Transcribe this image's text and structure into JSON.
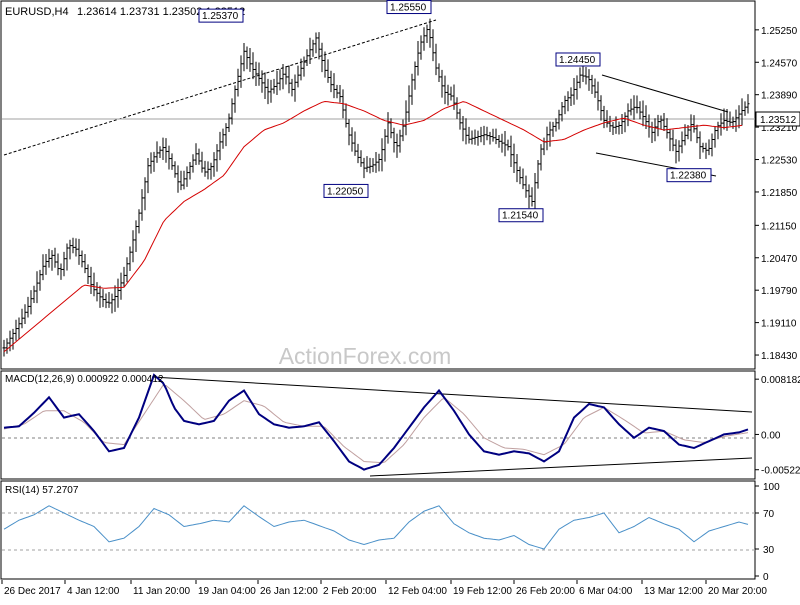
{
  "header": {
    "symbol": "EURUSD,H4",
    "ohlc": "1.23614 1.23731 1.23502 1.23512"
  },
  "watermark": "ActionForex.com",
  "colors": {
    "price": "#000000",
    "ma": "#d40000",
    "macd": "#000080",
    "signal": "#c0a0a0",
    "rsi": "#4a90c8",
    "trend": "#000000",
    "label_border": "#000080",
    "background": "#ffffff"
  },
  "chart_data": [
    {
      "type": "line",
      "name": "price",
      "title": "EURUSD,H4",
      "ylim": [
        1.182,
        1.2575
      ],
      "y_ticks": [
        "1.25250",
        "1.24570",
        "1.23890",
        "1.23210",
        "1.22530",
        "1.21850",
        "1.21150",
        "1.20470",
        "1.19790",
        "1.19110",
        "1.18430"
      ],
      "current_price": "1.23512",
      "x_ticks": [
        "26 Dec 2017",
        "4 Jan 12:00",
        "11 Jan 20:00",
        "19 Jan 04:00",
        "26 Jan 12:00",
        "2 Feb 20:00",
        "12 Feb 04:00",
        "19 Feb 12:00",
        "26 Feb 20:00",
        "6 Mar 04:00",
        "13 Mar 12:00",
        "20 Mar 20:00"
      ],
      "series": [
        {
          "x": [
            0,
            8,
            16,
            24,
            32,
            40,
            48,
            56,
            64,
            72,
            80,
            88,
            96,
            104,
            112,
            120,
            128,
            136,
            144,
            152,
            160,
            168,
            176,
            184,
            192,
            200,
            208,
            216,
            224,
            232,
            240,
            248,
            256,
            264,
            272,
            280,
            288,
            296,
            304,
            312,
            320,
            328,
            336,
            344,
            352,
            360,
            368,
            376,
            384,
            392,
            400,
            408,
            416,
            424,
            432,
            440,
            448,
            456,
            464,
            472,
            480,
            488,
            496,
            504,
            512,
            520,
            528,
            536,
            544,
            552,
            560,
            568,
            576,
            584,
            592,
            600,
            608,
            616,
            624,
            632,
            640,
            648,
            656,
            664,
            672,
            680,
            688,
            696,
            704,
            712,
            720,
            728,
            736,
            744
          ],
          "values": [
            1.1858,
            1.1885,
            1.1912,
            1.1945,
            1.1988,
            1.2035,
            1.2052,
            1.2015,
            1.2075,
            1.2065,
            1.203,
            1.1985,
            1.1965,
            1.195,
            1.1968,
            1.201,
            1.2075,
            1.215,
            1.224,
            1.2265,
            1.228,
            1.224,
            1.2195,
            1.223,
            1.2265,
            1.2225,
            1.224,
            1.229,
            1.233,
            1.241,
            1.248,
            1.2445,
            1.242,
            1.2395,
            1.241,
            1.2435,
            1.24,
            1.244,
            1.2475,
            1.2508,
            1.2445,
            1.2405,
            1.2385,
            1.231,
            1.2265,
            1.2235,
            1.224,
            1.2255,
            1.233,
            1.2275,
            1.233,
            1.242,
            1.2495,
            1.253,
            1.2445,
            1.2395,
            1.2385,
            1.233,
            1.2295,
            1.23,
            1.2305,
            1.23,
            1.229,
            1.228,
            1.2235,
            1.2195,
            1.2165,
            1.227,
            1.231,
            1.233,
            1.2375,
            1.239,
            1.243,
            1.2425,
            1.239,
            1.2335,
            1.232,
            1.2325,
            1.2355,
            1.2365,
            1.234,
            1.231,
            1.234,
            1.2305,
            1.227,
            1.23,
            1.233,
            1.228,
            1.227,
            1.232,
            1.2335,
            1.233,
            1.2351,
            1.237
          ]
        },
        {
          "name": "MA",
          "x": [
            0,
            40,
            80,
            100,
            120,
            140,
            160,
            180,
            200,
            220,
            240,
            260,
            280,
            300,
            320,
            340,
            360,
            380,
            400,
            420,
            440,
            460,
            480,
            500,
            520,
            540,
            560,
            580,
            600,
            620,
            640,
            660,
            680,
            700,
            720,
            740
          ],
          "values": [
            1.185,
            1.192,
            1.199,
            1.1983,
            1.1985,
            1.204,
            1.2125,
            1.2165,
            1.219,
            1.222,
            1.228,
            1.2315,
            1.233,
            1.2355,
            1.2375,
            1.237,
            1.2355,
            1.2335,
            1.2325,
            1.2335,
            1.236,
            1.2375,
            1.2355,
            1.2335,
            1.2315,
            1.229,
            1.2295,
            1.2315,
            1.233,
            1.234,
            1.2325,
            1.2315,
            1.232,
            1.2325,
            1.232,
            1.2325
          ]
        }
      ],
      "annotations": [
        {
          "text": "1.25370",
          "x": 245,
          "y": 1.2537
        },
        {
          "text": "1.25550",
          "x": 433,
          "y": 1.2555
        },
        {
          "text": "1.22050",
          "x": 370,
          "y": 1.2205
        },
        {
          "text": "1.21540",
          "x": 545,
          "y": 1.2154
        },
        {
          "text": "1.24450",
          "x": 602,
          "y": 1.2445
        },
        {
          "text": "1.22380",
          "x": 713,
          "y": 1.2238
        }
      ]
    },
    {
      "type": "line",
      "title": "MACD(12,26,9) 0.000922 0.000412",
      "ylim": [
        -0.0063,
        0.0088
      ],
      "y_ticks": [
        "0.008182",
        "0.00",
        "-0.005223"
      ],
      "series": [
        {
          "name": "MACD",
          "x": [
            0,
            15,
            30,
            45,
            60,
            75,
            90,
            105,
            120,
            135,
            150,
            160,
            170,
            180,
            195,
            210,
            225,
            240,
            255,
            270,
            285,
            300,
            315,
            330,
            345,
            360,
            375,
            390,
            405,
            420,
            435,
            450,
            465,
            480,
            495,
            510,
            525,
            540,
            555,
            570,
            585,
            600,
            615,
            630,
            645,
            660,
            675,
            690,
            705,
            720,
            735,
            745
          ],
          "values": [
            0.001,
            0.0012,
            0.0032,
            0.0055,
            0.0025,
            0.003,
            0.0005,
            -0.0025,
            -0.002,
            0.0025,
            0.0088,
            0.0075,
            0.004,
            0.002,
            0.0015,
            0.002,
            0.005,
            0.0065,
            0.003,
            0.0015,
            0.001,
            0.0012,
            0.0018,
            -0.001,
            -0.004,
            -0.0052,
            -0.0045,
            -0.002,
            0.001,
            0.004,
            0.0065,
            0.0035,
            0.0,
            -0.0025,
            -0.003,
            -0.0025,
            -0.0028,
            -0.004,
            -0.0025,
            0.0025,
            0.0045,
            0.004,
            0.0015,
            -0.0005,
            0.001,
            0.0005,
            -0.0015,
            -0.002,
            -0.001,
            0.0,
            0.0003,
            0.0008
          ]
        },
        {
          "name": "Signal",
          "x": [
            0,
            20,
            40,
            60,
            80,
            100,
            120,
            140,
            160,
            180,
            200,
            220,
            240,
            260,
            280,
            300,
            320,
            340,
            360,
            380,
            400,
            420,
            440,
            460,
            480,
            500,
            520,
            540,
            560,
            580,
            600,
            620,
            640,
            660,
            680,
            700,
            720,
            745
          ],
          "values": [
            0.0008,
            0.0015,
            0.0035,
            0.0035,
            0.0018,
            -0.0012,
            -0.0015,
            0.003,
            0.0075,
            0.005,
            0.0022,
            0.003,
            0.005,
            0.0042,
            0.0018,
            0.0012,
            0.0012,
            -0.0018,
            -0.004,
            -0.0042,
            -0.0015,
            0.0025,
            0.0055,
            0.003,
            -0.0005,
            -0.002,
            -0.0022,
            -0.003,
            -0.0015,
            0.0025,
            0.004,
            0.0022,
            0.0002,
            0.0005,
            -0.0008,
            -0.0012,
            -0.0003,
            0.0003
          ]
        }
      ]
    },
    {
      "type": "line",
      "title": "RSI(14) 57.2707",
      "ylim": [
        0,
        100
      ],
      "y_ticks": [
        "100",
        "70",
        "30",
        "0"
      ],
      "series": [
        {
          "name": "RSI",
          "x": [
            0,
            15,
            30,
            45,
            60,
            75,
            90,
            105,
            120,
            135,
            150,
            165,
            180,
            195,
            210,
            225,
            240,
            255,
            270,
            285,
            300,
            315,
            330,
            345,
            360,
            375,
            390,
            405,
            420,
            435,
            450,
            465,
            480,
            495,
            510,
            525,
            540,
            555,
            570,
            585,
            600,
            615,
            630,
            645,
            660,
            675,
            690,
            705,
            720,
            735,
            745
          ],
          "values": [
            52,
            62,
            68,
            78,
            70,
            62,
            55,
            38,
            42,
            55,
            75,
            68,
            55,
            58,
            62,
            60,
            78,
            66,
            55,
            60,
            62,
            56,
            50,
            40,
            35,
            40,
            42,
            60,
            72,
            78,
            58,
            48,
            42,
            40,
            45,
            35,
            30,
            52,
            62,
            65,
            70,
            48,
            55,
            65,
            58,
            52,
            38,
            50,
            55,
            60,
            57
          ]
        }
      ]
    }
  ]
}
